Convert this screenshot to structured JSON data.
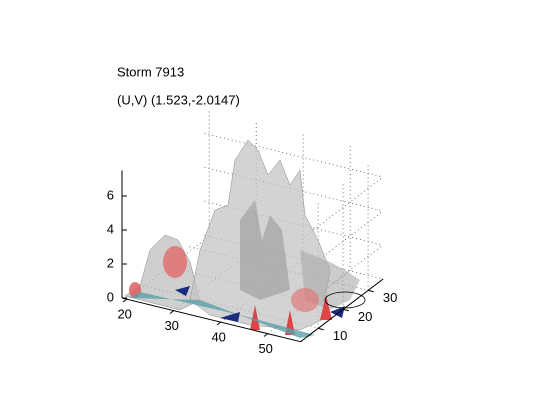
{
  "chart_data": {
    "type": "isosurface",
    "title": "Storm 7913",
    "subtitle": "(U,V) (1.523,-2.0147)",
    "xlim": [
      19,
      57
    ],
    "xticks": [
      20,
      30,
      40,
      50
    ],
    "ylim": [
      3,
      36
    ],
    "yticks": [
      10,
      20,
      30
    ],
    "zlim": [
      0,
      7.5
    ],
    "zticks": [
      0,
      2,
      4,
      6
    ],
    "grid": true
  }
}
